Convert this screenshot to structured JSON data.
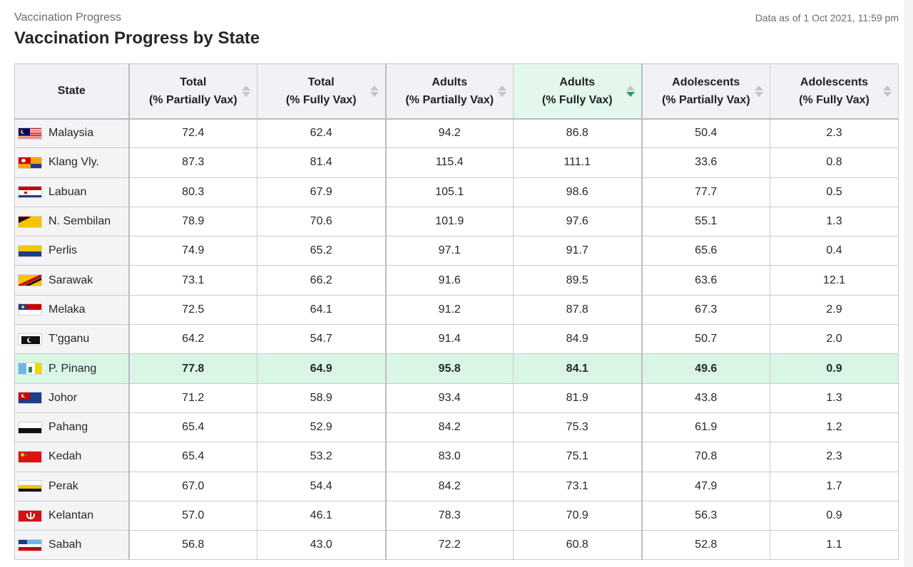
{
  "header": {
    "eyebrow": "Vaccination Progress",
    "title": "Vaccination Progress by State",
    "as_of": "Data as of 1 Oct 2021, 11:59 pm"
  },
  "table": {
    "columns": [
      {
        "line1": "State",
        "line2": ""
      },
      {
        "line1": "Total",
        "line2": "(% Partially Vax)"
      },
      {
        "line1": "Total",
        "line2": "(% Fully Vax)"
      },
      {
        "line1": "Adults",
        "line2": "(% Partially Vax)"
      },
      {
        "line1": "Adults",
        "line2": "(% Fully Vax)"
      },
      {
        "line1": "Adolescents",
        "line2": "(% Partially Vax)"
      },
      {
        "line1": "Adolescents",
        "line2": "(% Fully Vax)"
      }
    ],
    "sorted_column": 4,
    "sort_direction": "descending",
    "highlight_color": "#d9f6e5",
    "sort_active_color": "#2a9d6b",
    "rows": [
      {
        "state": "Malaysia",
        "flag": "malaysia-flag-icon",
        "v": [
          "72.4",
          "62.4",
          "94.2",
          "86.8",
          "50.4",
          "2.3"
        ]
      },
      {
        "state": "Klang Vly.",
        "flag": "klang-valley-flag-icon",
        "v": [
          "87.3",
          "81.4",
          "115.4",
          "111.1",
          "33.6",
          "0.8"
        ]
      },
      {
        "state": "Labuan",
        "flag": "labuan-flag-icon",
        "v": [
          "80.3",
          "67.9",
          "105.1",
          "98.6",
          "77.7",
          "0.5"
        ]
      },
      {
        "state": "N. Sembilan",
        "flag": "negeri-sembilan-flag-icon",
        "v": [
          "78.9",
          "70.6",
          "101.9",
          "97.6",
          "55.1",
          "1.3"
        ]
      },
      {
        "state": "Perlis",
        "flag": "perlis-flag-icon",
        "v": [
          "74.9",
          "65.2",
          "97.1",
          "91.7",
          "65.6",
          "0.4"
        ]
      },
      {
        "state": "Sarawak",
        "flag": "sarawak-flag-icon",
        "v": [
          "73.1",
          "66.2",
          "91.6",
          "89.5",
          "63.6",
          "12.1"
        ]
      },
      {
        "state": "Melaka",
        "flag": "melaka-flag-icon",
        "v": [
          "72.5",
          "64.1",
          "91.2",
          "87.8",
          "67.3",
          "2.9"
        ]
      },
      {
        "state": "T'gganu",
        "flag": "terengganu-flag-icon",
        "v": [
          "64.2",
          "54.7",
          "91.4",
          "84.9",
          "50.7",
          "2.0"
        ]
      },
      {
        "state": "P. Pinang",
        "flag": "penang-flag-icon",
        "highlight": true,
        "v": [
          "77.8",
          "64.9",
          "95.8",
          "84.1",
          "49.6",
          "0.9"
        ]
      },
      {
        "state": "Johor",
        "flag": "johor-flag-icon",
        "v": [
          "71.2",
          "58.9",
          "93.4",
          "81.9",
          "43.8",
          "1.3"
        ]
      },
      {
        "state": "Pahang",
        "flag": "pahang-flag-icon",
        "v": [
          "65.4",
          "52.9",
          "84.2",
          "75.3",
          "61.9",
          "1.2"
        ]
      },
      {
        "state": "Kedah",
        "flag": "kedah-flag-icon",
        "v": [
          "65.4",
          "53.2",
          "83.0",
          "75.1",
          "70.8",
          "2.3"
        ]
      },
      {
        "state": "Perak",
        "flag": "perak-flag-icon",
        "v": [
          "67.0",
          "54.4",
          "84.2",
          "73.1",
          "47.9",
          "1.7"
        ]
      },
      {
        "state": "Kelantan",
        "flag": "kelantan-flag-icon",
        "v": [
          "57.0",
          "46.1",
          "78.3",
          "70.9",
          "56.3",
          "0.9"
        ]
      },
      {
        "state": "Sabah",
        "flag": "sabah-flag-icon",
        "v": [
          "56.8",
          "43.0",
          "72.2",
          "60.8",
          "52.8",
          "1.1"
        ]
      }
    ]
  }
}
